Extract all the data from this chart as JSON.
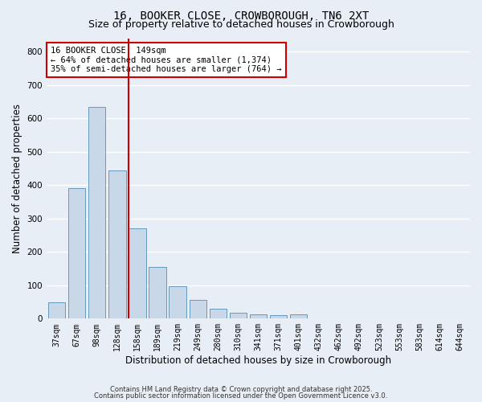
{
  "title": "16, BOOKER CLOSE, CROWBOROUGH, TN6 2XT",
  "subtitle": "Size of property relative to detached houses in Crowborough",
  "xlabel": "Distribution of detached houses by size in Crowborough",
  "ylabel": "Number of detached properties",
  "bar_values": [
    50,
    390,
    635,
    445,
    270,
    155,
    97,
    57,
    30,
    18,
    12,
    10,
    12,
    0,
    0,
    0,
    2,
    0,
    0,
    0,
    0
  ],
  "x_labels": [
    "37sqm",
    "67sqm",
    "98sqm",
    "128sqm",
    "158sqm",
    "189sqm",
    "219sqm",
    "249sqm",
    "280sqm",
    "310sqm",
    "341sqm",
    "371sqm",
    "401sqm",
    "432sqm",
    "462sqm",
    "492sqm",
    "523sqm",
    "553sqm",
    "583sqm",
    "614sqm",
    "644sqm"
  ],
  "bar_color": "#c8d8e8",
  "bar_edge_color": "#6699bb",
  "background_color": "#e8eef5",
  "grid_color": "#ffffff",
  "vline_x_index": 4,
  "vline_color": "#cc0000",
  "property_label": "16 BOOKER CLOSE: 149sqm",
  "annotation_line1": "← 64% of detached houses are smaller (1,374)",
  "annotation_line2": "35% of semi-detached houses are larger (764) →",
  "annotation_box_color": "#ffffff",
  "annotation_edge_color": "#cc0000",
  "ylim": [
    0,
    840
  ],
  "footer1": "Contains HM Land Registry data © Crown copyright and database right 2025.",
  "footer2": "Contains public sector information licensed under the Open Government Licence v3.0.",
  "title_fontsize": 10,
  "subtitle_fontsize": 9,
  "tick_fontsize": 7,
  "ylabel_fontsize": 8.5,
  "xlabel_fontsize": 8.5,
  "footer_fontsize": 6,
  "annotation_fontsize": 7.5
}
